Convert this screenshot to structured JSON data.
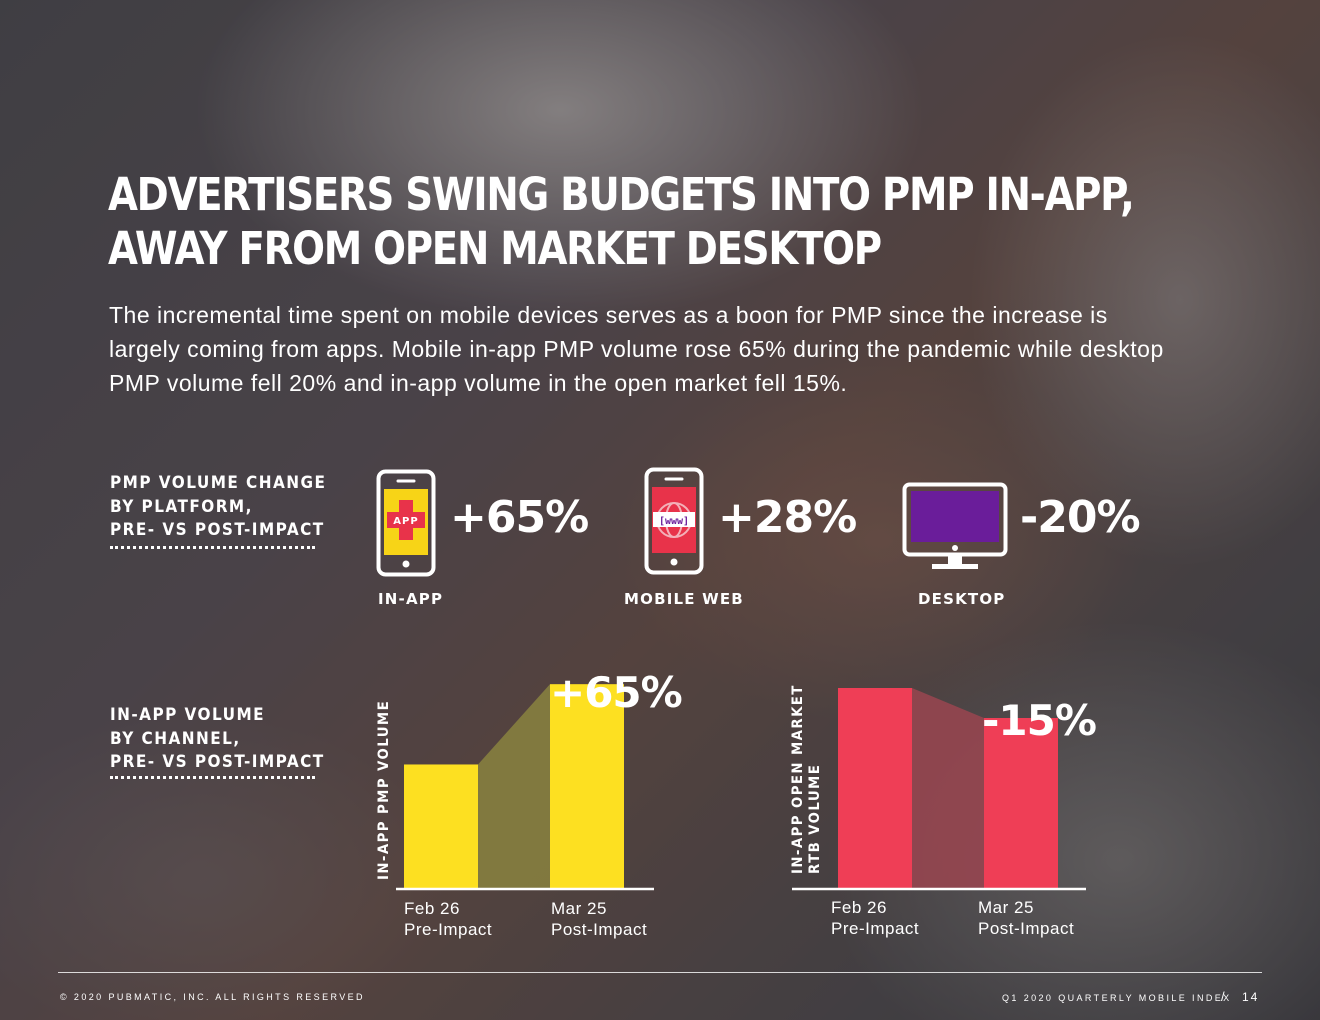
{
  "title_lines": [
    "ADVERTISERS SWING BUDGETS INTO PMP IN-APP,",
    "AWAY FROM OPEN MARKET DESKTOP"
  ],
  "intro_lines": [
    "The incremental time spent on mobile devices serves as a boon for PMP since the increase is",
    "largely coming from apps. Mobile in-app PMP volume rose 65% during the pandemic while desktop",
    "PMP volume fell 20% and in-app volume in the open market fell 15%."
  ],
  "section1": {
    "label_lines": [
      "PMP VOLUME CHANGE",
      "BY PLATFORM,",
      "PRE- VS POST-IMPACT"
    ]
  },
  "section2": {
    "label_lines": [
      "IN-APP VOLUME",
      "BY CHANNEL,",
      "PRE- VS POST-IMPACT"
    ]
  },
  "platforms": [
    {
      "name": "IN-APP",
      "change": "+65%",
      "icon": "app-phone-icon",
      "icon_text": "APP",
      "color": "#f7d417"
    },
    {
      "name": "MOBILE WEB",
      "change": "+28%",
      "icon": "www-phone-icon",
      "icon_text": "[www]",
      "color": "#e8334a"
    },
    {
      "name": "DESKTOP",
      "change": "-20%",
      "icon": "desktop-monitor-icon",
      "color": "#6a1d9a"
    }
  ],
  "chart_data": [
    {
      "type": "bar",
      "ylabel": "IN-APP PMP VOLUME",
      "categories": [
        [
          "Feb 26",
          "Pre-Impact"
        ],
        [
          "Mar 25",
          "Post-Impact"
        ]
      ],
      "values": [
        100,
        165
      ],
      "annotation": "+65%",
      "ylim": [
        0,
        170
      ],
      "bar_color": "#fde021",
      "connector_color": "#8a8240"
    },
    {
      "type": "bar",
      "ylabel": "IN-APP OPEN MARKET RTB VOLUME",
      "ylabel_lines": [
        "IN-APP OPEN MARKET",
        "RTB VOLUME"
      ],
      "categories": [
        [
          "Feb 26",
          "Pre-Impact"
        ],
        [
          "Mar 25",
          "Post-Impact"
        ]
      ],
      "values": [
        100,
        85
      ],
      "annotation": "-15%",
      "ylim": [
        0,
        105
      ],
      "bar_color": "#ef3e56",
      "connector_color": "#9a4550"
    }
  ],
  "footer": {
    "left": "© 2020 PUBMATIC, INC. ALL RIGHTS RESERVED",
    "right": "Q1 2020 QUARTERLY MOBILE INDEX",
    "separator": "/",
    "page": "14"
  }
}
